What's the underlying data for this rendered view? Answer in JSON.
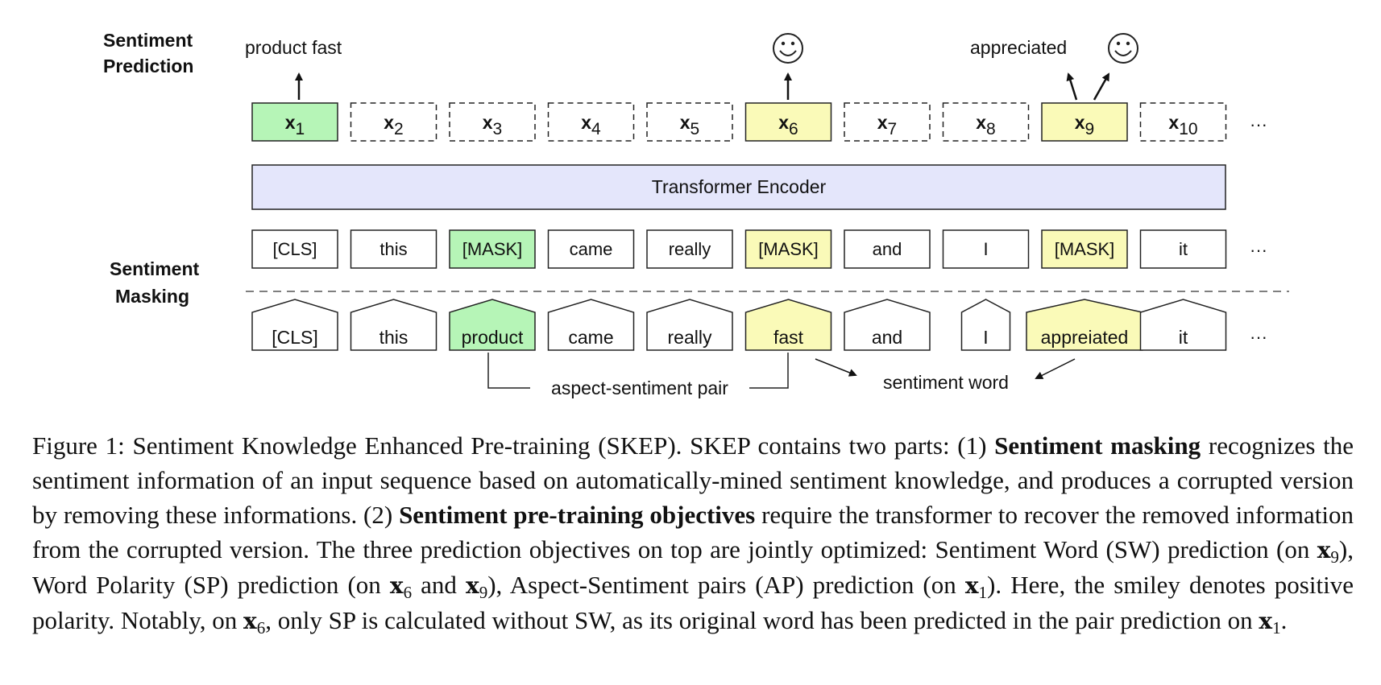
{
  "diagram": {
    "labels": {
      "prediction": [
        "Sentiment",
        "Prediction"
      ],
      "masking": [
        "Sentiment",
        "Masking"
      ],
      "encoder": "Transformer Encoder",
      "ellipsis": "···",
      "aspect_pair": "aspect-sentiment pair",
      "sentiment_word": "sentiment word",
      "pred_x1": "product fast",
      "pred_x9": "appreciated"
    },
    "outputs": [
      {
        "base": "x",
        "sub": "1",
        "fill": "#b6f5b7",
        "dashed": false
      },
      {
        "base": "x",
        "sub": "2",
        "fill": "#ffffff",
        "dashed": true
      },
      {
        "base": "x",
        "sub": "3",
        "fill": "#ffffff",
        "dashed": true
      },
      {
        "base": "x",
        "sub": "4",
        "fill": "#ffffff",
        "dashed": true
      },
      {
        "base": "x",
        "sub": "5",
        "fill": "#ffffff",
        "dashed": true
      },
      {
        "base": "x",
        "sub": "6",
        "fill": "#fafab8",
        "dashed": false
      },
      {
        "base": "x",
        "sub": "7",
        "fill": "#ffffff",
        "dashed": true
      },
      {
        "base": "x",
        "sub": "8",
        "fill": "#ffffff",
        "dashed": true
      },
      {
        "base": "x",
        "sub": "9",
        "fill": "#fafab8",
        "dashed": false
      },
      {
        "base": "x",
        "sub": "10",
        "fill": "#ffffff",
        "dashed": true
      }
    ],
    "masked_tokens": [
      {
        "text": "[CLS]",
        "fill": "#ffffff"
      },
      {
        "text": "this",
        "fill": "#ffffff"
      },
      {
        "text": "[MASK]",
        "fill": "#b6f5b7"
      },
      {
        "text": "came",
        "fill": "#ffffff"
      },
      {
        "text": "really",
        "fill": "#ffffff"
      },
      {
        "text": "[MASK]",
        "fill": "#fafab8"
      },
      {
        "text": "and",
        "fill": "#ffffff"
      },
      {
        "text": "I",
        "fill": "#ffffff"
      },
      {
        "text": "[MASK]",
        "fill": "#fafab8"
      },
      {
        "text": "it",
        "fill": "#ffffff"
      }
    ],
    "input_tokens": [
      {
        "text": "[CLS]",
        "fill": "#ffffff"
      },
      {
        "text": "this",
        "fill": "#ffffff"
      },
      {
        "text": "product",
        "fill": "#b6f5b7"
      },
      {
        "text": "came",
        "fill": "#ffffff"
      },
      {
        "text": "really",
        "fill": "#ffffff"
      },
      {
        "text": "fast",
        "fill": "#fafab8"
      },
      {
        "text": "and",
        "fill": "#ffffff"
      },
      {
        "text": "I",
        "fill": "#ffffff"
      },
      {
        "text": "appreiated",
        "fill": "#fafab8"
      },
      {
        "text": "it",
        "fill": "#ffffff"
      }
    ],
    "smiley_icon": "smiley-face",
    "encoder_fill": "#e4e6fb"
  },
  "caption": {
    "p1": "Figure 1: Sentiment Knowledge Enhanced Pre-training (SKEP). SKEP contains two parts: (1) ",
    "b1": "Sentiment masking",
    "p2": " recognizes the sentiment information of an input sequence based on automatically-mined sentiment knowledge, and produces a corrupted version by removing these informations. (2) ",
    "b2": "Sentiment pre-training objectives",
    "p3": " require the transformer to recover the removed information from the corrupted version. The three prediction objectives on top are jointly optimized: Sentiment Word (SW) prediction (on ",
    "m1": "x",
    "m1sub": "9",
    "p4": "), Word Polarity (SP) prediction (on ",
    "m2": "x",
    "m2sub": "6",
    "p5": " and ",
    "m3": "x",
    "m3sub": "9",
    "p6": "), Aspect-Sentiment pairs (AP) prediction (on ",
    "m4": "x",
    "m4sub": "1",
    "p7": "). Here, the smiley denotes positive polarity. Notably, on ",
    "m5": "x",
    "m5sub": "6",
    "p8": ", only SP is calculated without SW, as its original word has been predicted in the pair prediction on ",
    "m6": "x",
    "m6sub": "1",
    "p9": "."
  }
}
